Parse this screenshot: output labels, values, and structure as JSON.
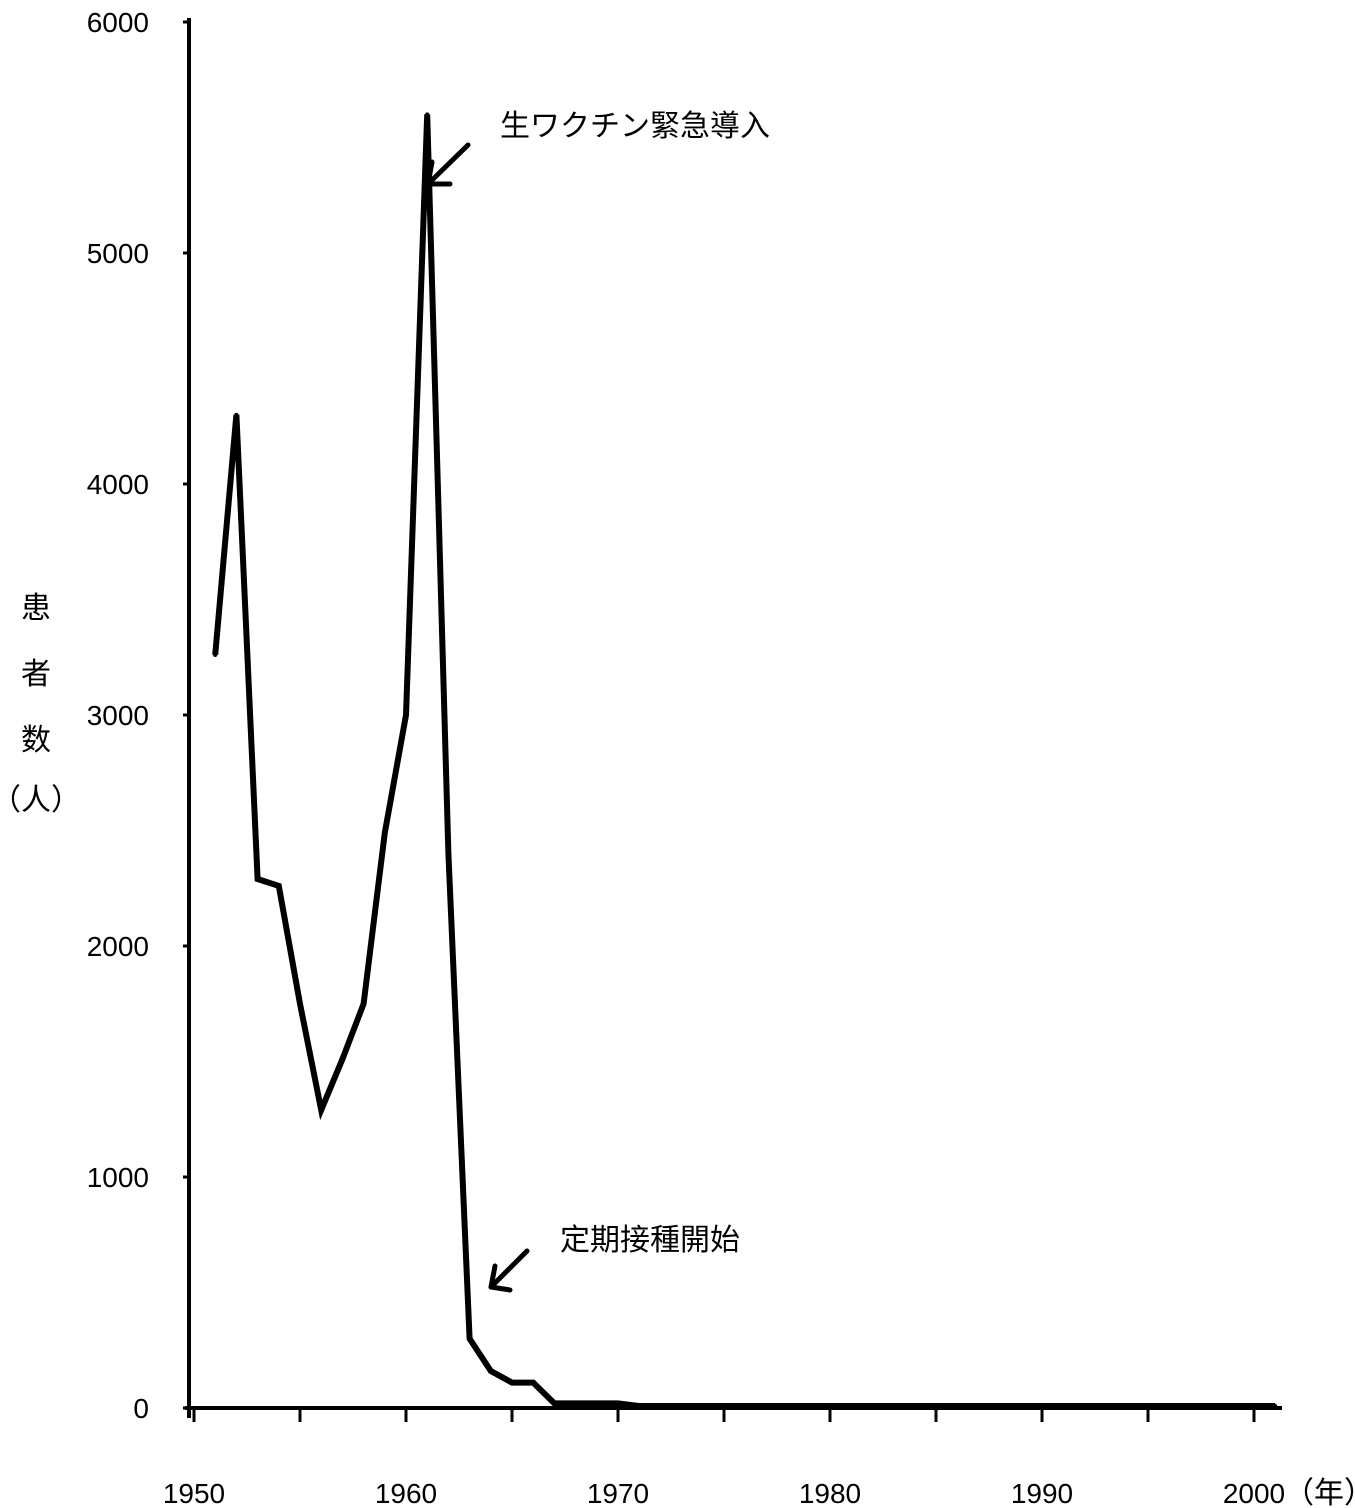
{
  "chart_data": {
    "type": "line",
    "title": "",
    "xlabel": "",
    "x_unit": "（年）",
    "ylabel": [
      "患",
      "者",
      "数",
      "（人）"
    ],
    "xlim": [
      1950,
      2001
    ],
    "ylim": [
      0,
      6000
    ],
    "x_ticks": [
      1950,
      1960,
      1970,
      1980,
      1990,
      2000
    ],
    "y_ticks": [
      0,
      1000,
      2000,
      3000,
      4000,
      5000,
      6000
    ],
    "grid": false,
    "series": [
      {
        "x": [
          1951,
          1952,
          1953,
          1954,
          1955,
          1956,
          1957,
          1958,
          1959,
          1960,
          1961,
          1962,
          1963,
          1964,
          1965,
          1966,
          1967,
          1968,
          1969,
          1970,
          1971,
          1975,
          1980,
          1985,
          1990,
          1995,
          2000,
          2001
        ],
        "y": [
          3260,
          4300,
          2290,
          2260,
          1750,
          1290,
          1510,
          1750,
          2490,
          3000,
          5600,
          2400,
          300,
          160,
          110,
          110,
          20,
          20,
          20,
          20,
          5,
          5,
          5,
          5,
          5,
          5,
          5,
          5
        ]
      }
    ],
    "annotations": [
      {
        "text": "生ワクチン緊急導入",
        "x": 1960,
        "y": 5600
      },
      {
        "text": "定期接種開始",
        "x": 1964,
        "y": 650
      }
    ]
  }
}
